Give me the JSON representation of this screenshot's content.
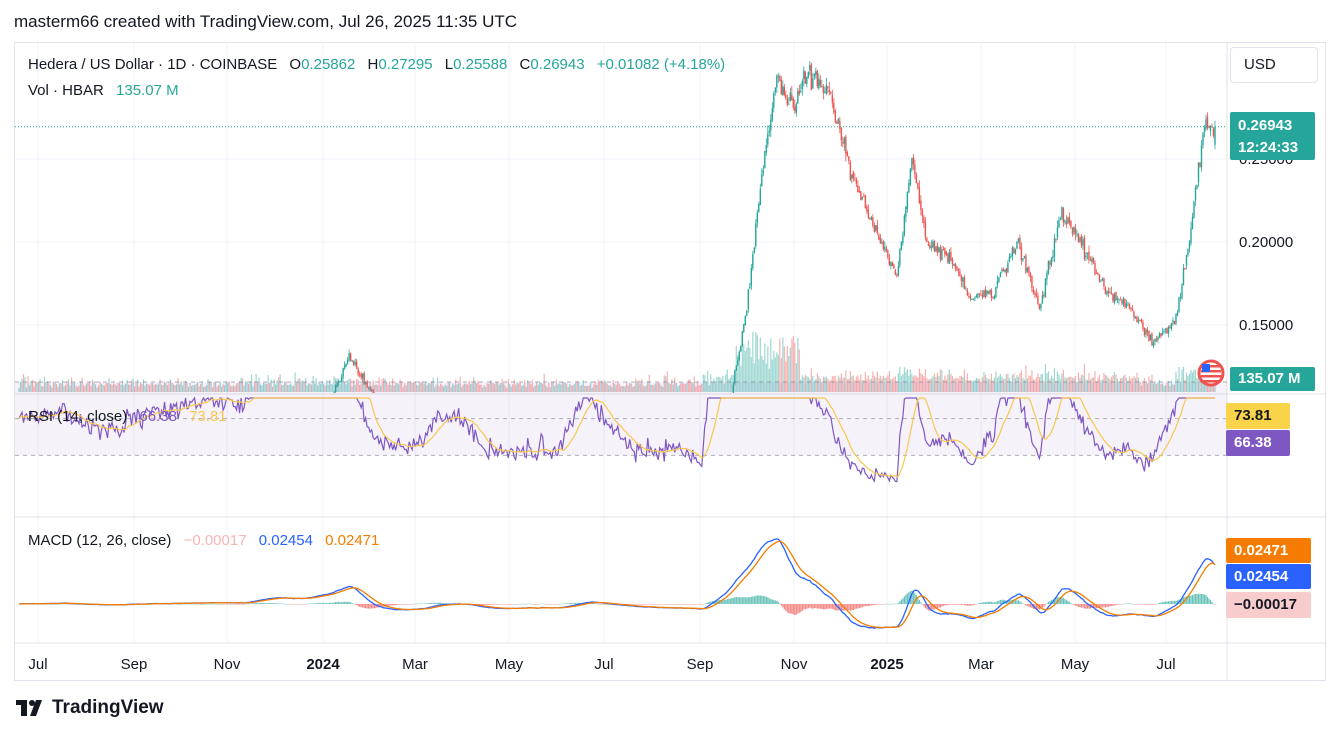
{
  "header": {
    "text": "masterm66 created with TradingView.com, Jul 26, 2025 11:35 UTC"
  },
  "legend": {
    "symbol": "Hedera / US Dollar · 1D · COINBASE",
    "o_label": "O",
    "o": "0.25862",
    "h_label": "H",
    "h": "0.27295",
    "l_label": "L",
    "l": "0.25588",
    "c_label": "C",
    "c": "0.26943",
    "change": "+0.01082 (+4.18%)",
    "vol_label": "Vol · HBAR",
    "vol": "135.07 M"
  },
  "rsi_legend": {
    "label": "RSI (14, close)",
    "rsi": "66.38",
    "ma": "73.81"
  },
  "macd_legend": {
    "label": "MACD (12, 26, close)",
    "hist": "−0.00017",
    "macd": "0.02454",
    "signal": "0.02471"
  },
  "currency": "USD",
  "price_tag": {
    "price": "0.26943",
    "countdown": "12:24:33"
  },
  "volume_tag": "135.07 M",
  "rsi_tags": {
    "ma": "73.81",
    "rsi": "66.38"
  },
  "macd_tags": {
    "signal": "0.02471",
    "macd": "0.02454",
    "hist": "−0.00017"
  },
  "footer": {
    "brand": "TradingView"
  },
  "colors": {
    "up": "#26a69a",
    "down": "#ef5350",
    "rsi": "#7e57c2",
    "rsi_ma": "#f9c74f",
    "macd": "#2962ff",
    "signal": "#f57c00"
  },
  "chart_data": {
    "type": "candlestick",
    "symbol": "HBAR/USD",
    "interval": "1D",
    "x_ticks": [
      "Jul",
      "Sep",
      "Nov",
      "2024",
      "Mar",
      "May",
      "Jul",
      "Sep",
      "Nov",
      "2025",
      "Mar",
      "May",
      "Jul"
    ],
    "y_ticks": [
      "0.15000",
      "0.20000",
      "0.25000"
    ],
    "ylim": [
      0.06,
      0.3
    ],
    "close_anchors": [
      {
        "t": 0,
        "v": 0.05
      },
      {
        "t": 30,
        "v": 0.052
      },
      {
        "t": 60,
        "v": 0.049
      },
      {
        "t": 90,
        "v": 0.05
      },
      {
        "t": 120,
        "v": 0.053
      },
      {
        "t": 150,
        "v": 0.057
      },
      {
        "t": 170,
        "v": 0.072
      },
      {
        "t": 190,
        "v": 0.08
      },
      {
        "t": 205,
        "v": 0.1
      },
      {
        "t": 220,
        "v": 0.13
      },
      {
        "t": 235,
        "v": 0.11
      },
      {
        "t": 250,
        "v": 0.1
      },
      {
        "t": 265,
        "v": 0.093
      },
      {
        "t": 285,
        "v": 0.098
      },
      {
        "t": 300,
        "v": 0.095
      },
      {
        "t": 320,
        "v": 0.085
      },
      {
        "t": 340,
        "v": 0.078
      },
      {
        "t": 360,
        "v": 0.072
      },
      {
        "t": 380,
        "v": 0.08
      },
      {
        "t": 400,
        "v": 0.075
      },
      {
        "t": 420,
        "v": 0.068
      },
      {
        "t": 440,
        "v": 0.06
      },
      {
        "t": 455,
        "v": 0.052
      },
      {
        "t": 470,
        "v": 0.085
      },
      {
        "t": 485,
        "v": 0.16
      },
      {
        "t": 495,
        "v": 0.24
      },
      {
        "t": 505,
        "v": 0.3
      },
      {
        "t": 515,
        "v": 0.28
      },
      {
        "t": 525,
        "v": 0.3
      },
      {
        "t": 540,
        "v": 0.29
      },
      {
        "t": 555,
        "v": 0.24
      },
      {
        "t": 570,
        "v": 0.21
      },
      {
        "t": 585,
        "v": 0.18
      },
      {
        "t": 595,
        "v": 0.25
      },
      {
        "t": 605,
        "v": 0.2
      },
      {
        "t": 620,
        "v": 0.19
      },
      {
        "t": 635,
        "v": 0.165
      },
      {
        "t": 650,
        "v": 0.17
      },
      {
        "t": 665,
        "v": 0.2
      },
      {
        "t": 680,
        "v": 0.16
      },
      {
        "t": 695,
        "v": 0.22
      },
      {
        "t": 710,
        "v": 0.195
      },
      {
        "t": 725,
        "v": 0.17
      },
      {
        "t": 740,
        "v": 0.16
      },
      {
        "t": 755,
        "v": 0.14
      },
      {
        "t": 770,
        "v": 0.15
      },
      {
        "t": 780,
        "v": 0.2
      },
      {
        "t": 790,
        "v": 0.27
      },
      {
        "t": 797,
        "v": 0.2694
      }
    ],
    "last_candle": {
      "open": 0.25862,
      "high": 0.27295,
      "low": 0.25588,
      "close": 0.26943
    },
    "last_volume_M": 135.07,
    "rsi": {
      "period": 14,
      "last": 66.38,
      "ma_last": 73.81,
      "band_levels": [
        30,
        50,
        70
      ],
      "ylim": [
        20,
        90
      ]
    },
    "macd": {
      "fast": 12,
      "slow": 26,
      "macd_last": 0.02454,
      "signal_last": 0.02471,
      "hist_last": -0.00017
    }
  }
}
